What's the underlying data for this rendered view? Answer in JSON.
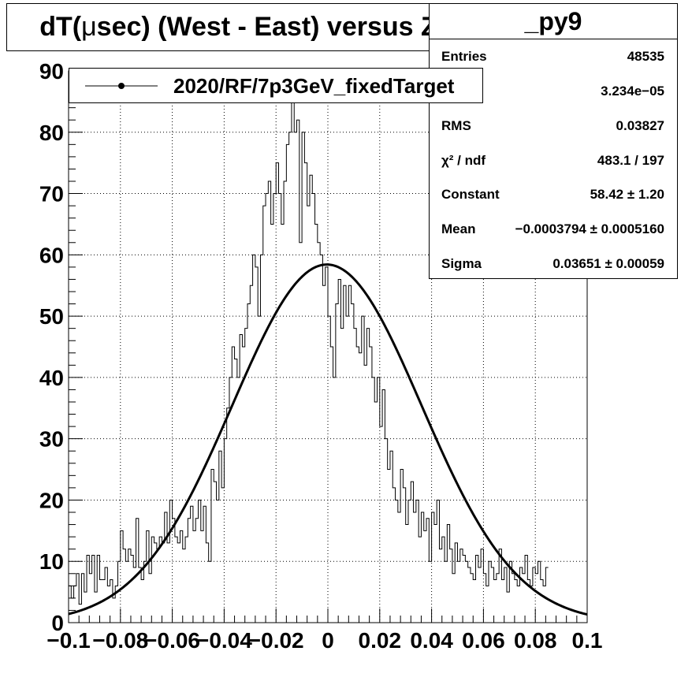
{
  "title_prefix": "dT(",
  "title_mu": "μ",
  "title_suffix": "sec) (West - East) versus Z",
  "stats": {
    "name": "_py9",
    "rows": [
      {
        "label": "Entries",
        "value": "48535"
      },
      {
        "label": "",
        "value": "3.234e−05"
      },
      {
        "label": "RMS",
        "value": "0.03827"
      },
      {
        "label": "χ² / ndf",
        "value": "483.1 / 197"
      },
      {
        "label": "Constant",
        "value": "58.42 ± 1.20"
      },
      {
        "label": "Mean",
        "value": "−0.0003794 ± 0.0005160"
      },
      {
        "label": "Sigma",
        "value": "0.03651 ± 0.00059"
      }
    ]
  },
  "legend": {
    "entry": "2020/RF/7p3GeV_fixedTarget"
  },
  "chart_data": {
    "type": "line",
    "xlim": [
      -0.1,
      0.1
    ],
    "ylim": [
      0,
      90
    ],
    "xticks": [
      -0.1,
      -0.08,
      -0.06,
      -0.04,
      -0.02,
      0,
      0.02,
      0.04,
      0.06,
      0.08,
      0.1
    ],
    "xtick_labels": [
      "−0.1",
      "−0.08",
      "−0.06",
      "−0.04",
      "−0.02",
      "0",
      "0.02",
      "0.04",
      "0.06",
      "0.08",
      "0.1"
    ],
    "yticks": [
      0,
      10,
      20,
      30,
      40,
      50,
      60,
      70,
      80,
      90
    ],
    "grid": true,
    "series": [
      {
        "name": "2020/RF/7p3GeV_fixedTarget",
        "style": "histogram",
        "bin_start": -0.1,
        "bin_width": 0.001,
        "values": [
          6,
          4,
          6,
          8,
          3,
          8,
          5,
          11,
          8,
          11,
          5,
          11,
          7,
          7,
          9,
          6,
          7,
          4,
          6,
          10,
          15,
          12,
          10,
          12,
          11,
          9,
          17,
          9,
          7,
          10,
          15,
          8,
          14,
          13,
          12,
          14,
          13,
          18,
          13,
          20,
          17,
          14,
          13,
          15,
          12,
          14,
          17,
          19,
          15,
          17,
          20,
          15,
          19,
          13,
          10,
          25,
          23,
          20,
          28,
          22,
          30,
          35,
          40,
          45,
          43,
          40,
          47,
          45,
          48,
          52,
          55,
          60,
          58,
          50,
          60,
          68,
          70,
          72,
          65,
          70,
          75,
          70,
          65,
          72,
          78,
          80,
          85,
          80,
          82,
          62,
          80,
          75,
          68,
          73,
          70,
          65,
          62,
          60,
          55,
          58,
          50,
          45,
          40,
          52,
          56,
          48,
          55,
          50,
          55,
          52,
          48,
          45,
          44,
          50,
          42,
          48,
          45,
          40,
          36,
          40,
          32,
          38,
          30,
          25,
          28,
          22,
          20,
          18,
          25,
          22,
          16,
          20,
          23,
          18,
          20,
          14,
          18,
          15,
          17,
          10,
          18,
          16,
          20,
          12,
          14,
          10,
          16,
          12,
          8,
          13,
          10,
          12,
          11,
          10,
          9,
          8,
          7,
          11,
          9,
          12,
          8,
          6,
          10,
          9,
          7,
          8,
          12,
          7,
          9,
          5,
          10,
          8,
          7,
          6,
          9,
          8,
          11,
          7,
          6,
          9,
          8,
          10,
          7,
          6,
          9
        ]
      },
      {
        "name": "",
        "style": "gaussian-fit",
        "constant": 58.42,
        "mean": -0.0003794,
        "sigma": 0.03651
      }
    ]
  }
}
